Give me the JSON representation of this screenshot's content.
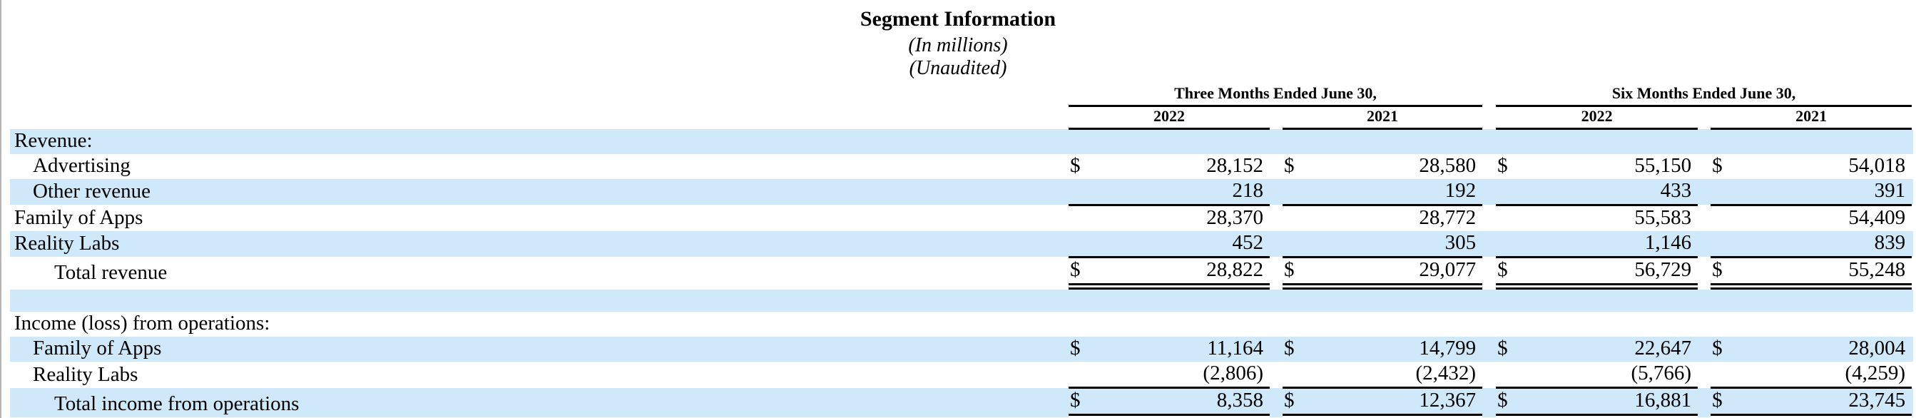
{
  "page": {
    "title": "Segment Information",
    "subtitle_millions": "(In millions)",
    "subtitle_unaudited": "(Unaudited)"
  },
  "table": {
    "column_groups": [
      {
        "label": "Three Months Ended June 30,",
        "years": [
          "2022",
          "2021"
        ]
      },
      {
        "label": "Six Months Ended June 30,",
        "years": [
          "2022",
          "2021"
        ]
      }
    ],
    "currency_symbol": "$",
    "rows": [
      {
        "label": "Revenue:",
        "indent": 0,
        "shaded": true,
        "dollar": false,
        "values": [
          "",
          "",
          "",
          ""
        ]
      },
      {
        "label": "Advertising",
        "indent": 1,
        "shaded": false,
        "dollar": true,
        "values": [
          "28,152",
          "28,580",
          "55,150",
          "54,018"
        ]
      },
      {
        "label": "Other revenue",
        "indent": 1,
        "shaded": true,
        "dollar": false,
        "values": [
          "218",
          "192",
          "433",
          "391"
        ],
        "underline": "single"
      },
      {
        "label": "Family of Apps",
        "indent": 0,
        "shaded": false,
        "dollar": false,
        "values": [
          "28,370",
          "28,772",
          "55,583",
          "54,409"
        ]
      },
      {
        "label": "Reality Labs",
        "indent": 0,
        "shaded": true,
        "dollar": false,
        "values": [
          "452",
          "305",
          "1,146",
          "839"
        ],
        "underline": "single"
      },
      {
        "label": "Total revenue",
        "indent": 2,
        "shaded": false,
        "dollar": true,
        "values": [
          "28,822",
          "29,077",
          "56,729",
          "55,248"
        ],
        "underline": "double"
      },
      {
        "label": "",
        "blank": true,
        "shaded": true
      },
      {
        "label": "Income (loss) from operations:",
        "indent": 0,
        "shaded": false,
        "dollar": false,
        "values": [
          "",
          "",
          "",
          ""
        ]
      },
      {
        "label": "Family of Apps",
        "indent": 1,
        "shaded": true,
        "dollar": true,
        "values": [
          "11,164",
          "14,799",
          "22,647",
          "28,004"
        ]
      },
      {
        "label": "Reality Labs",
        "indent": 1,
        "shaded": false,
        "dollar": false,
        "values": [
          "(2,806)",
          "(2,432)",
          "(5,766)",
          "(4,259)"
        ],
        "underline": "single"
      },
      {
        "label": "Total income from operations",
        "indent": 2,
        "shaded": true,
        "dollar": true,
        "values": [
          "8,358",
          "12,367",
          "16,881",
          "23,745"
        ],
        "underline": "double"
      }
    ]
  },
  "colors": {
    "row_highlight": "#cfe8fa",
    "text": "#000000",
    "page_edge": "#b5b5b5"
  }
}
